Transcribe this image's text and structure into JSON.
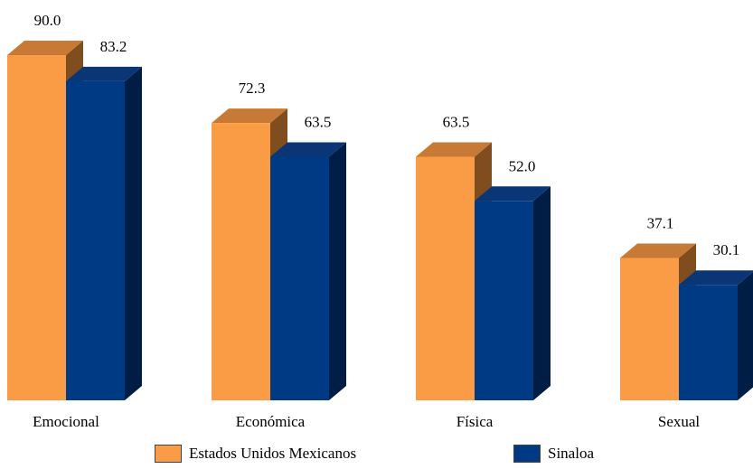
{
  "chart_data": {
    "type": "bar",
    "style": "3d-clustered",
    "title": "",
    "xlabel": "",
    "ylabel": "",
    "ylim": [
      0,
      90
    ],
    "grid": false,
    "legend_position": "bottom",
    "categories": [
      "Emocional",
      "Económica",
      "Física",
      "Sexual"
    ],
    "series": [
      {
        "name": "Estados Unidos Mexicanos",
        "values": [
          90.0,
          72.3,
          63.5,
          37.1
        ],
        "labels": [
          "90.0",
          "72.3",
          "63.5",
          "37.1"
        ],
        "color": "#fa9b46",
        "top_color": "#c67a36",
        "side_color": "#7f4d1e"
      },
      {
        "name": "Sinaloa",
        "values": [
          83.2,
          63.5,
          52.0,
          30.1
        ],
        "labels": [
          "83.2",
          "63.5",
          "52.0",
          "30.1"
        ],
        "color": "#003a84",
        "top_color": "#0a3676",
        "side_color": "#001d45"
      }
    ]
  }
}
